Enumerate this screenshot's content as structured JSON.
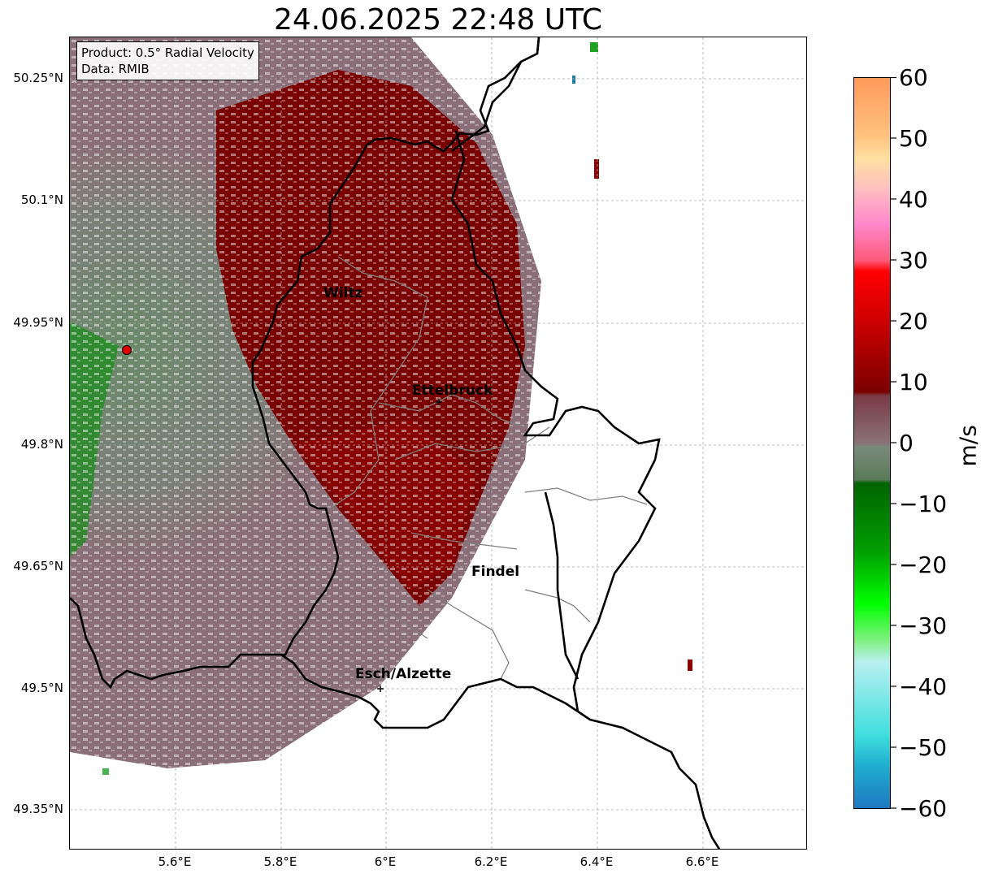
{
  "title": "24.06.2025 22:48 UTC",
  "info_box": {
    "product": "Product: 0.5° Radial Velocity",
    "data_source": "Data: RMIB"
  },
  "axes": {
    "lat_ticks": [
      "50.25°N",
      "50.1°N",
      "49.95°N",
      "49.8°N",
      "49.65°N",
      "49.5°N",
      "49.35°N"
    ],
    "lon_ticks": [
      "5.6°E",
      "5.8°E",
      "6°E",
      "6.2°E",
      "6.4°E",
      "6.6°E"
    ]
  },
  "cities": [
    {
      "name": "Wiltz"
    },
    {
      "name": "Ettelbruck"
    },
    {
      "name": "Findel"
    },
    {
      "name": "Esch/Alzette"
    }
  ],
  "colorbar": {
    "unit": "m/s",
    "ticks": [
      "60",
      "50",
      "40",
      "30",
      "20",
      "10",
      "0",
      "−10",
      "−20",
      "−30",
      "−40",
      "−50",
      "−60"
    ],
    "range": [
      -60,
      60
    ],
    "colors": {
      "strong_out": "#ff9a5a",
      "mid_out": "#ff4a66",
      "out": "#8b0000",
      "zero_pos": "#8a6e78",
      "zero_neg": "#6b8a6b",
      "in": "#008c00",
      "strong_in": "#3ddc3d",
      "very_strong_in": "#2dd9d9",
      "extreme_in": "#1f78c0"
    }
  },
  "colors": {
    "inbound_green": "#5f7e5f",
    "neutral_mauve": "#8c6e79",
    "outbound_red": "#7a0000",
    "border_black": "#000000",
    "border_gray": "#808080",
    "radar_site": "#e00000"
  }
}
